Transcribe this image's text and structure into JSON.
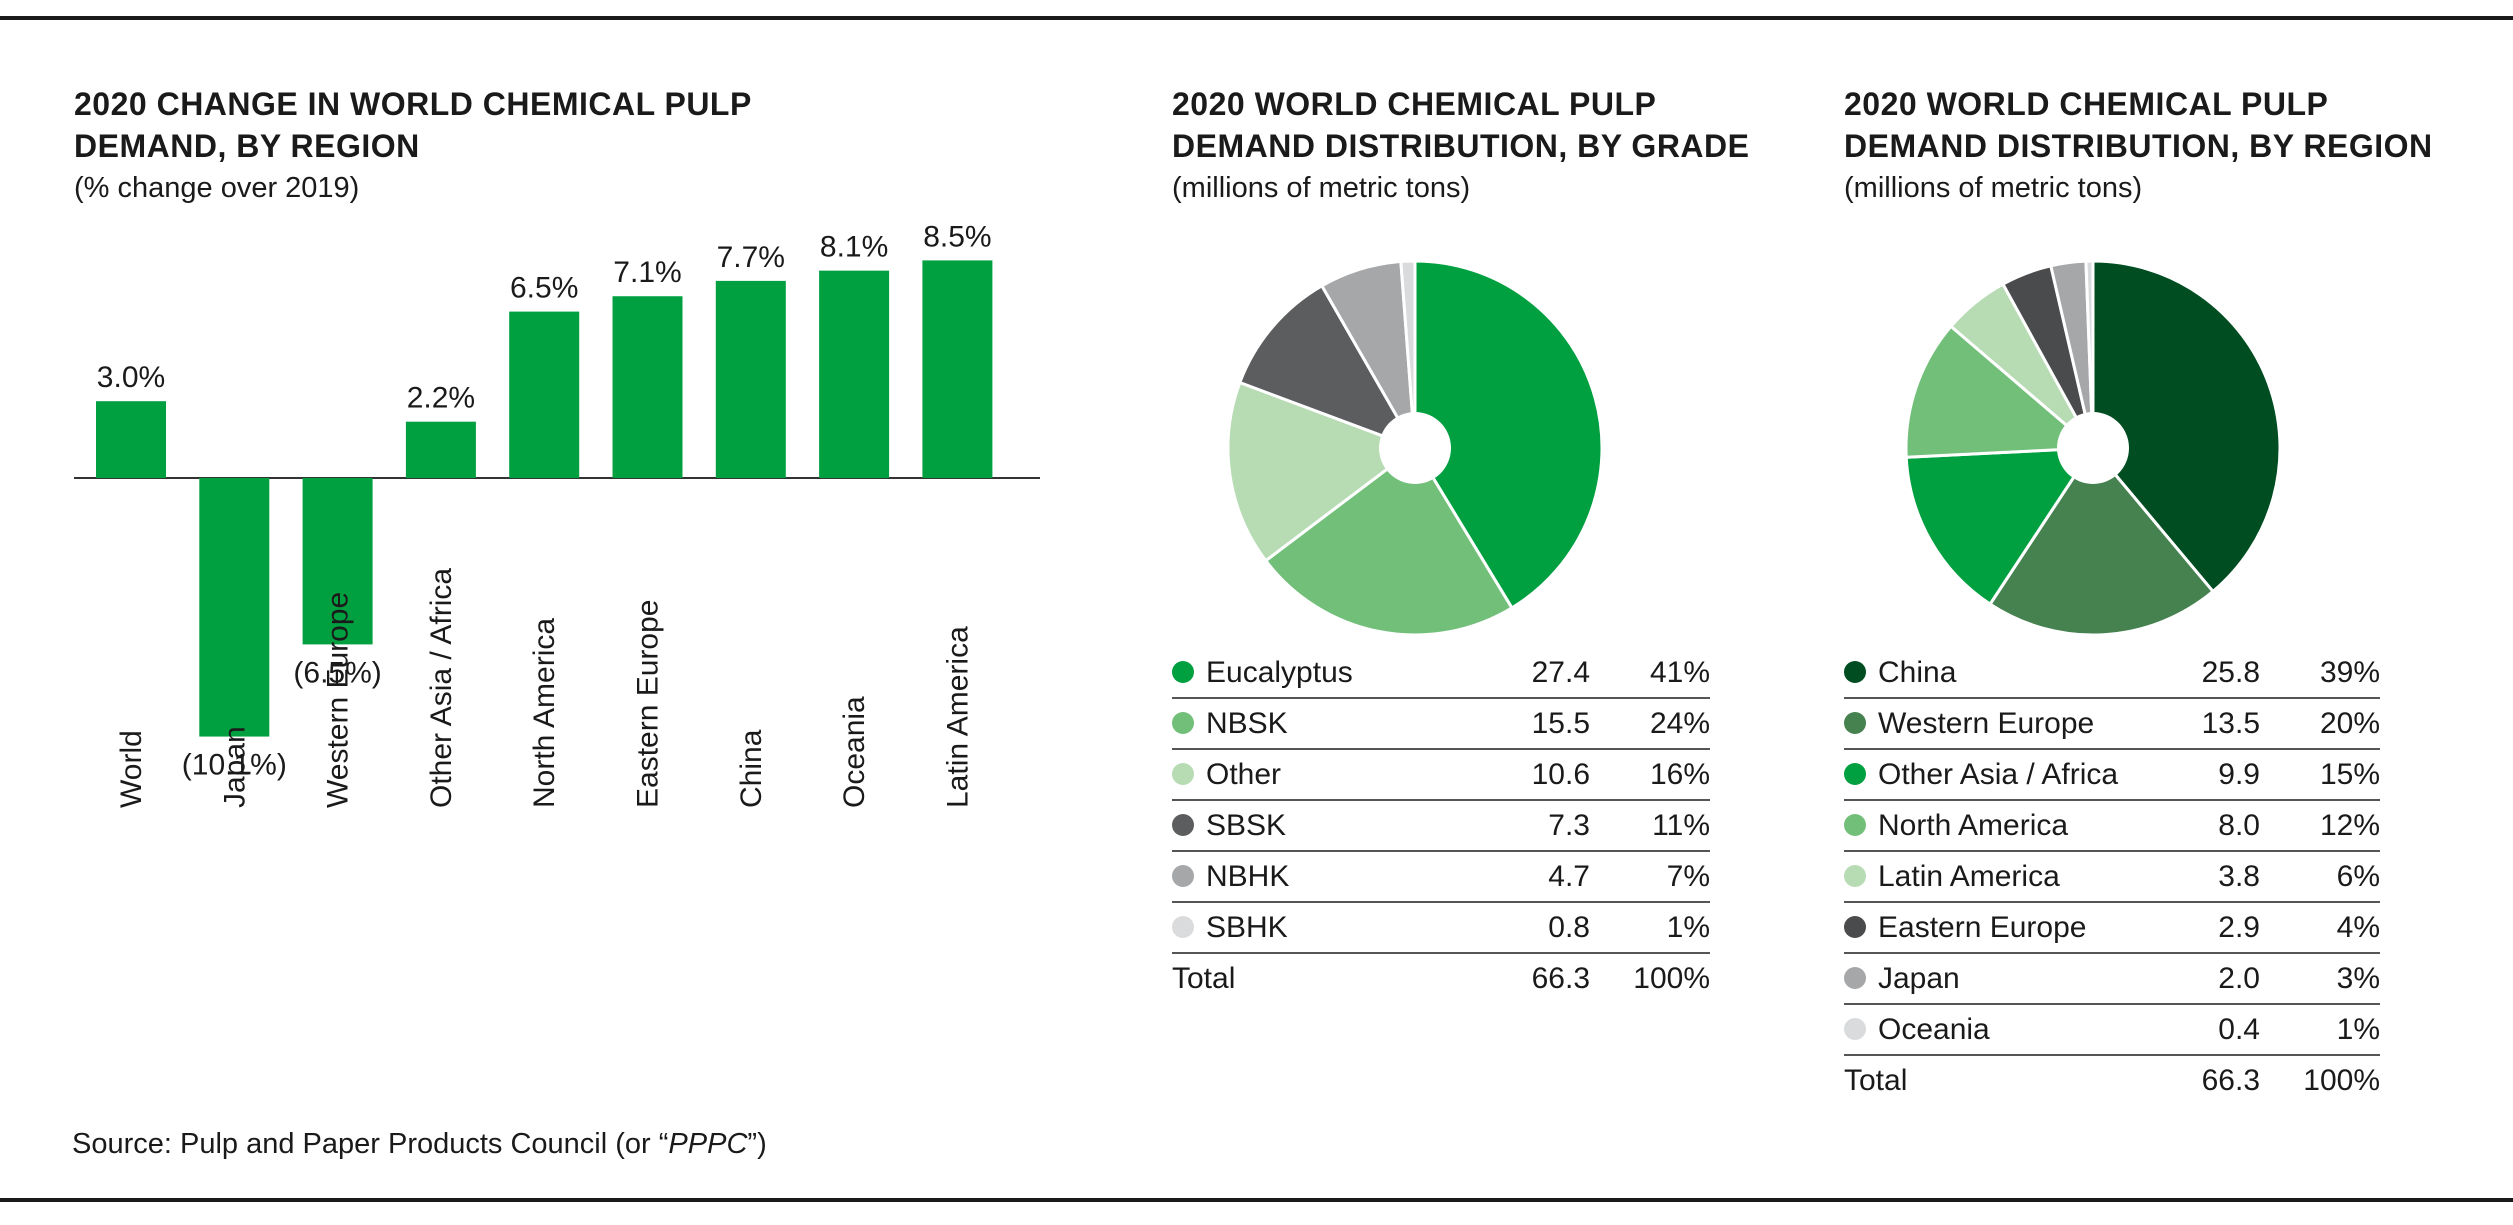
{
  "source": {
    "prefix": "Source: Pulp and Paper Products Council (or “",
    "abbr": "PPPC",
    "suffix": "”)"
  },
  "chart_data": [
    {
      "type": "bar",
      "title_line1": "2020 CHANGE IN WORLD CHEMICAL PULP",
      "title_line2": "DEMAND, BY REGION",
      "subtitle": "(% change over 2019)",
      "categories": [
        "World",
        "Japan",
        "Western Europe",
        "Other Asia / Africa",
        "North America",
        "Eastern Europe",
        "China",
        "Oceania",
        "Latin America"
      ],
      "values": [
        3.0,
        -10.1,
        -6.5,
        2.2,
        6.5,
        7.1,
        7.7,
        8.1,
        8.5
      ],
      "value_labels": [
        "3.0%",
        "(10.1%)",
        "(6.5%)",
        "2.2%",
        "6.5%",
        "7.1%",
        "7.7%",
        "8.1%",
        "8.5%"
      ],
      "color": "#00a040",
      "ylim": [
        -10.1,
        8.5
      ]
    },
    {
      "type": "pie",
      "title_line1": "2020 WORLD CHEMICAL PULP",
      "title_line2": "DEMAND DISTRIBUTION, BY GRADE",
      "subtitle": "(millions of metric tons)",
      "slices": [
        {
          "label": "Eucalyptus",
          "value": "27.4",
          "pct": "41%",
          "color": "#00a040"
        },
        {
          "label": "NBSK",
          "value": "15.5",
          "pct": "24%",
          "color": "#72bf7a"
        },
        {
          "label": "Other",
          "value": "10.6",
          "pct": "16%",
          "color": "#b7dcb4"
        },
        {
          "label": "SBSK",
          "value": "7.3",
          "pct": "11%",
          "color": "#5b5d5e"
        },
        {
          "label": "NBHK",
          "value": "4.7",
          "pct": "7%",
          "color": "#a6a7a9"
        },
        {
          "label": "SBHK",
          "value": "0.8",
          "pct": "1%",
          "color": "#dadbdc"
        }
      ],
      "total": {
        "label": "Total",
        "value": "66.3",
        "pct": "100%"
      }
    },
    {
      "type": "pie",
      "title_line1": "2020 WORLD CHEMICAL PULP",
      "title_line2": "DEMAND DISTRIBUTION, BY REGION",
      "subtitle": "(millions of metric tons)",
      "slices": [
        {
          "label": "China",
          "value": "25.8",
          "pct": "39%",
          "color": "#004d22"
        },
        {
          "label": "Western Europe",
          "value": "13.5",
          "pct": "20%",
          "color": "#468150"
        },
        {
          "label": "Other Asia / Africa",
          "value": "9.9",
          "pct": "15%",
          "color": "#00a040"
        },
        {
          "label": "North America",
          "value": "8.0",
          "pct": "12%",
          "color": "#72bf7a"
        },
        {
          "label": "Latin America",
          "value": "3.8",
          "pct": "6%",
          "color": "#b7dcb4"
        },
        {
          "label": "Eastern Europe",
          "value": "2.9",
          "pct": "4%",
          "color": "#4a4b4c"
        },
        {
          "label": "Japan",
          "value": "2.0",
          "pct": "3%",
          "color": "#a6a7a9"
        },
        {
          "label": "Oceania",
          "value": "0.4",
          "pct": "1%",
          "color": "#dadbdc"
        }
      ],
      "total": {
        "label": "Total",
        "value": "66.3",
        "pct": "100%"
      }
    }
  ]
}
